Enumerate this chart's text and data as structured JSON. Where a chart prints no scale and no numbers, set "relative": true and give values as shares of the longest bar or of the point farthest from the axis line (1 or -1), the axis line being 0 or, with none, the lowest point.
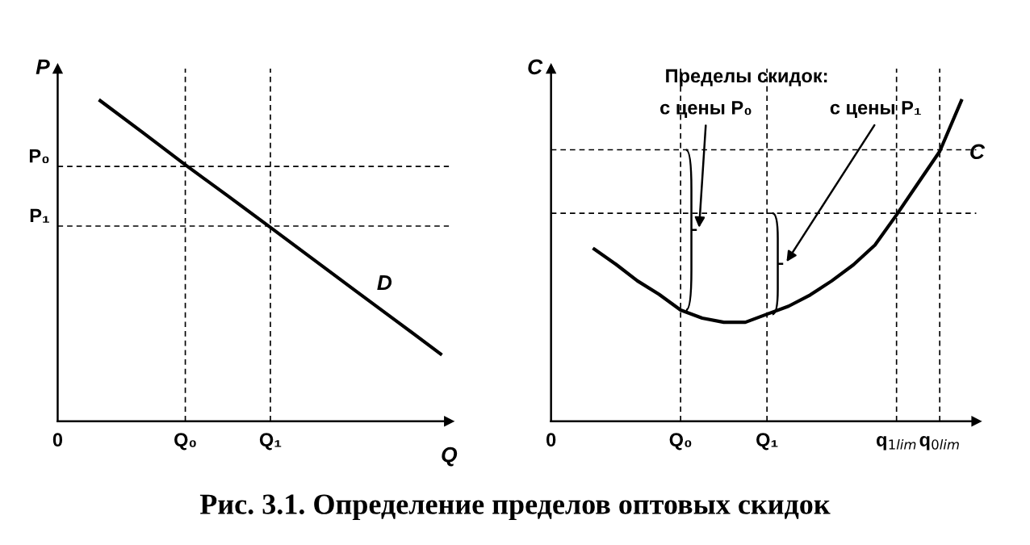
{
  "chart_data": [
    {
      "type": "line",
      "relative": true,
      "ylabel": "P",
      "xlabel": "Q",
      "categories": [
        "0",
        null,
        null,
        "Q₀",
        null,
        "Q₁",
        null,
        null,
        null,
        null
      ],
      "series": [
        {
          "name": "D",
          "color": "#000000",
          "values": [
            null,
            1.0,
            0.901,
            0.8,
            0.703,
            0.605,
            0.506,
            0.407,
            0.309,
            0.21
          ]
        }
      ],
      "ref_lines": [
        {
          "axis": "y",
          "value": 0.795,
          "label": "P₀",
          "line_style": "dashed"
        },
        {
          "axis": "y",
          "value": 0.609,
          "label": "P₁",
          "line_style": "dashed"
        },
        {
          "axis": "x",
          "value": "Q₀",
          "line_style": "dashed"
        },
        {
          "axis": "x",
          "value": "Q₁",
          "line_style": "dashed"
        }
      ],
      "annotations": [
        "Рис. 3.1. Определение пределов оптовых скидок"
      ],
      "tick_labels": "x",
      "grid": false,
      "legend": false
    },
    {
      "type": "line",
      "relative": true,
      "ylabel": "C",
      "categories": [
        "0",
        null,
        null,
        null,
        null,
        null,
        "Q₀",
        null,
        null,
        null,
        "Q₁",
        null,
        null,
        null,
        null,
        null,
        "q$_{1lim}$",
        null,
        "q$_{0lim}$",
        null
      ],
      "series": [
        {
          "name": "C",
          "color": "#000000",
          "values": [
            null,
            null,
            0.537,
            0.49,
            0.438,
            0.396,
            0.347,
            0.322,
            0.309,
            0.309,
            0.334,
            0.359,
            0.394,
            0.438,
            0.488,
            0.55,
            0.644,
            0.743,
            0.842,
            1.0
          ]
        }
      ],
      "ref_lines": [
        {
          "axis": "y",
          "value": 0.847,
          "line_style": "dashed"
        },
        {
          "axis": "y",
          "value": 0.649,
          "line_style": "dashed"
        },
        {
          "axis": "x",
          "value": "Q₀",
          "line_style": "dashed"
        },
        {
          "axis": "x",
          "value": "Q₁",
          "line_style": "dashed"
        },
        {
          "axis": "x",
          "value": "q$_{1lim}$",
          "line_style": "dashed"
        },
        {
          "axis": "x",
          "value": "q$_{0lim}$",
          "line_style": "dashed"
        }
      ],
      "annotations": [
        "Пределы скидок:",
        "с цены P₀",
        "с цены P₁"
      ],
      "tick_labels": "x",
      "grid": false,
      "legend": false
    }
  ]
}
